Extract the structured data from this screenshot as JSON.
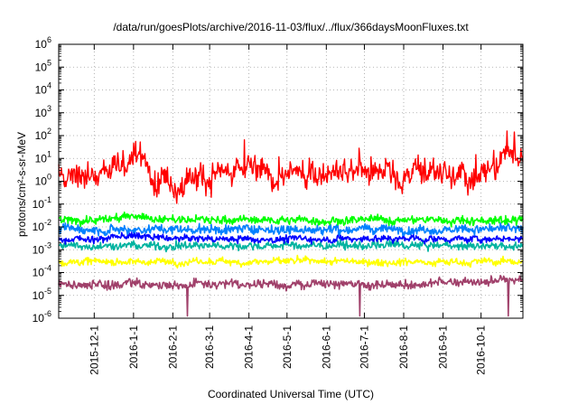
{
  "chart_data": {
    "type": "line",
    "title": "/data/run/goesPlots/archive/2016-11-03/flux/../flux/366daysMoonFluxes.txt",
    "xlabel": "Coordinated Universal Time (UTC)",
    "ylabel": "protons/cm²-s-sr-MeV",
    "yscale": "log",
    "grid": true,
    "legend": "none",
    "xlim": [
      "2015-11-03",
      "2016-11-03"
    ],
    "ylim": [
      1e-06,
      1000000.0
    ],
    "x_ticks": [
      "2015-12-1",
      "2016-1-1",
      "2016-2-1",
      "2016-3-1",
      "2016-4-1",
      "2016-5-1",
      "2016-6-1",
      "2016-7-1",
      "2016-8-1",
      "2016-9-1",
      "2016-10-1"
    ],
    "y_ticks": [
      {
        "value": 1e-06,
        "base": "10",
        "exp": "-6"
      },
      {
        "value": 1e-05,
        "base": "10",
        "exp": "-5"
      },
      {
        "value": 0.0001,
        "base": "10",
        "exp": "-4"
      },
      {
        "value": 0.001,
        "base": "10",
        "exp": "-3"
      },
      {
        "value": 0.01,
        "base": "10",
        "exp": "-2"
      },
      {
        "value": 0.1,
        "base": "10",
        "exp": "-1"
      },
      {
        "value": 1,
        "base": "10",
        "exp": "0"
      },
      {
        "value": 10,
        "base": "10",
        "exp": "1"
      },
      {
        "value": 100,
        "base": "10",
        "exp": "2"
      },
      {
        "value": 1000,
        "base": "10",
        "exp": "3"
      },
      {
        "value": 10000,
        "base": "10",
        "exp": "4"
      },
      {
        "value": 100000,
        "base": "10",
        "exp": "5"
      },
      {
        "value": 1000000,
        "base": "10",
        "exp": "6"
      }
    ],
    "series": [
      {
        "color": "#a0406a",
        "x": [
          "2015-11-03",
          "2015-12-01",
          "2016-01-01",
          "2016-02-01",
          "2016-03-01",
          "2016-04-01",
          "2016-05-01",
          "2016-06-01",
          "2016-07-01",
          "2016-08-01",
          "2016-09-01",
          "2016-10-01",
          "2016-11-03"
        ],
        "y": [
          3e-05,
          3e-05,
          3e-05,
          3e-05,
          2.8e-05,
          3e-05,
          3e-05,
          3e-05,
          3e-05,
          3e-05,
          3.5e-05,
          4e-05,
          5e-05
        ]
      },
      {
        "color": "#ffff00",
        "x": [
          "2015-11-03",
          "2015-12-01",
          "2016-01-01",
          "2016-02-01",
          "2016-03-01",
          "2016-04-01",
          "2016-05-01",
          "2016-06-01",
          "2016-07-01",
          "2016-08-01",
          "2016-09-01",
          "2016-10-01",
          "2016-11-03"
        ],
        "y": [
          0.0003,
          0.0003,
          0.0003,
          0.0003,
          0.0003,
          0.0003,
          0.0003,
          0.0003,
          0.0003,
          0.0003,
          0.0003,
          0.0003,
          0.0003
        ]
      },
      {
        "color": "#00b3a0",
        "x": [
          "2015-11-03",
          "2015-12-01",
          "2016-01-01",
          "2016-02-01",
          "2016-03-01",
          "2016-04-01",
          "2016-05-01",
          "2016-06-01",
          "2016-07-01",
          "2016-08-01",
          "2016-09-01",
          "2016-10-01",
          "2016-11-03"
        ],
        "y": [
          0.0015,
          0.0015,
          0.0015,
          0.0015,
          0.0015,
          0.0015,
          0.0015,
          0.0015,
          0.0015,
          0.0015,
          0.0015,
          0.0015,
          0.0015
        ]
      },
      {
        "color": "#0080ff",
        "x": [
          "2015-11-03",
          "2015-12-01",
          "2016-01-01",
          "2016-02-01",
          "2016-03-01",
          "2016-04-01",
          "2016-05-01",
          "2016-06-01",
          "2016-07-01",
          "2016-08-01",
          "2016-09-01",
          "2016-10-01",
          "2016-11-03"
        ],
        "y": [
          0.008,
          0.008,
          0.008,
          0.008,
          0.008,
          0.008,
          0.008,
          0.008,
          0.008,
          0.008,
          0.008,
          0.008,
          0.008
        ]
      },
      {
        "color": "#00ff00",
        "x": [
          "2015-11-03",
          "2015-12-01",
          "2016-01-01",
          "2016-02-01",
          "2016-03-01",
          "2016-04-01",
          "2016-05-01",
          "2016-06-01",
          "2016-07-01",
          "2016-08-01",
          "2016-09-01",
          "2016-10-01",
          "2016-11-03"
        ],
        "y": [
          0.02,
          0.02,
          0.03,
          0.02,
          0.02,
          0.02,
          0.02,
          0.02,
          0.02,
          0.02,
          0.02,
          0.02,
          0.02
        ]
      },
      {
        "color": "#0000ff",
        "x": [
          "2015-11-03",
          "2015-12-01",
          "2016-01-01",
          "2016-02-01",
          "2016-03-01",
          "2016-04-01",
          "2016-05-01",
          "2016-06-01",
          "2016-07-01",
          "2016-08-01",
          "2016-09-01",
          "2016-10-01",
          "2016-11-03"
        ],
        "y": [
          0.003,
          0.003,
          0.004,
          0.003,
          0.003,
          0.003,
          0.003,
          0.003,
          0.003,
          0.003,
          0.003,
          0.003,
          0.003
        ]
      },
      {
        "color": "#ff0000",
        "x": [
          "2015-11-03",
          "2015-11-15",
          "2015-12-01",
          "2015-12-20",
          "2016-01-01",
          "2016-01-20",
          "2016-02-01",
          "2016-02-20",
          "2016-03-01",
          "2016-03-20",
          "2016-04-01",
          "2016-04-20",
          "2016-05-01",
          "2016-05-20",
          "2016-06-01",
          "2016-06-20",
          "2016-07-01",
          "2016-07-20",
          "2016-08-01",
          "2016-08-20",
          "2016-09-01",
          "2016-09-20",
          "2016-10-01",
          "2016-10-20",
          "2016-11-03"
        ],
        "y": [
          5,
          3,
          2,
          3,
          10,
          3,
          2,
          1.5,
          2,
          1,
          1,
          2,
          1,
          2,
          3,
          3,
          2,
          3,
          2,
          2,
          3,
          1,
          3,
          10,
          5
        ]
      }
    ]
  }
}
